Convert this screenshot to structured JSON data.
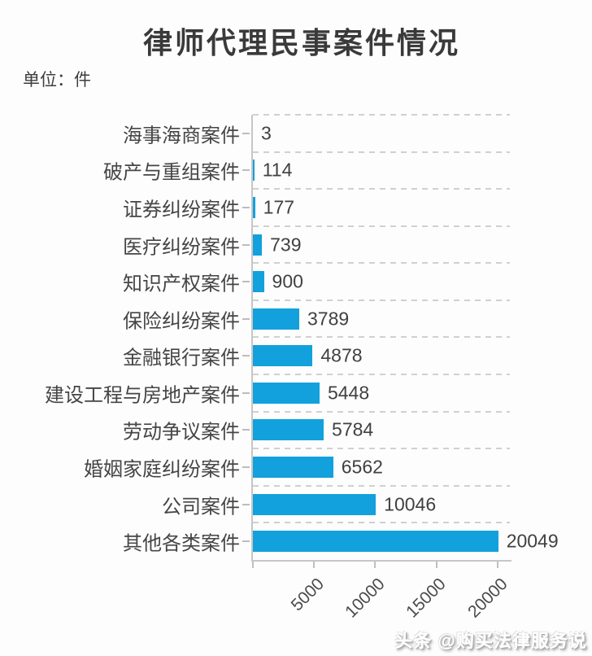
{
  "page": {
    "title": "律师代理民事案件情况",
    "unit_label": "单位：件",
    "watermark": "头条 @购买法律服务说"
  },
  "chart_data": {
    "type": "bar",
    "orientation": "horizontal",
    "title": "律师代理民事案件情况",
    "unit": "件",
    "categories": [
      "海事海商案件",
      "破产与重组案件",
      "证券纠纷案件",
      "医疗纠纷案件",
      "知识产权案件",
      "保险纠纷案件",
      "金融银行案件",
      "建设工程与房地产案件",
      "劳动争议案件",
      "婚姻家庭纠纷案件",
      "公司案件",
      "其他各类案件"
    ],
    "values": [
      3,
      114,
      177,
      739,
      900,
      3789,
      4878,
      5448,
      5784,
      6562,
      10046,
      20049
    ],
    "value_labels_shown": true,
    "x_axis": {
      "ticks": [
        0,
        5000,
        10000,
        15000,
        20000
      ],
      "tick_labels": [
        "5000",
        "10000",
        "15000",
        "20000"
      ],
      "tick_label_rotation_deg": -45
    },
    "xlim": [
      0,
      21000
    ],
    "grid": "dashed horizontal lines at category band boundaries",
    "legend": "none",
    "colors": {
      "bar": "#12a1dc",
      "axis": "#c6c6c6",
      "grid": "#d0d0d0",
      "title_text": "#3a3a3a",
      "label_text": "#454545"
    }
  }
}
